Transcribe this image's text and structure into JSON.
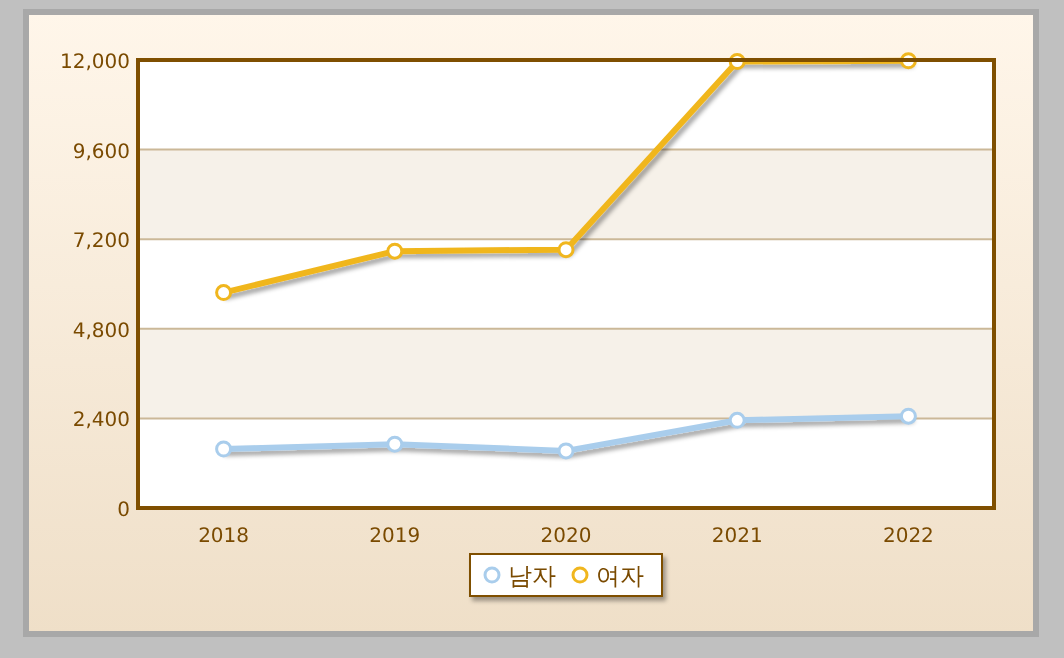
{
  "chart_data": {
    "type": "line",
    "categories": [
      "2018",
      "2019",
      "2020",
      "2021",
      "2022"
    ],
    "series": [
      {
        "name": "남자",
        "color": "#a9cdec",
        "values": [
          1580,
          1710,
          1530,
          2350,
          2460
        ]
      },
      {
        "name": "여자",
        "color": "#f0b61e",
        "values": [
          5770,
          6880,
          6920,
          11960,
          11980
        ]
      }
    ],
    "ylim": [
      0,
      12000
    ],
    "yticks": [
      {
        "value": 0,
        "label": "0"
      },
      {
        "value": 2400,
        "label": "2,400"
      },
      {
        "value": 4800,
        "label": "4,800"
      },
      {
        "value": 7200,
        "label": "7,200"
      },
      {
        "value": 9600,
        "label": "9,600"
      },
      {
        "value": 12000,
        "label": "12,000"
      }
    ],
    "grid": "y",
    "legend": "bottom",
    "marker": "circle",
    "line_style": "solid"
  }
}
